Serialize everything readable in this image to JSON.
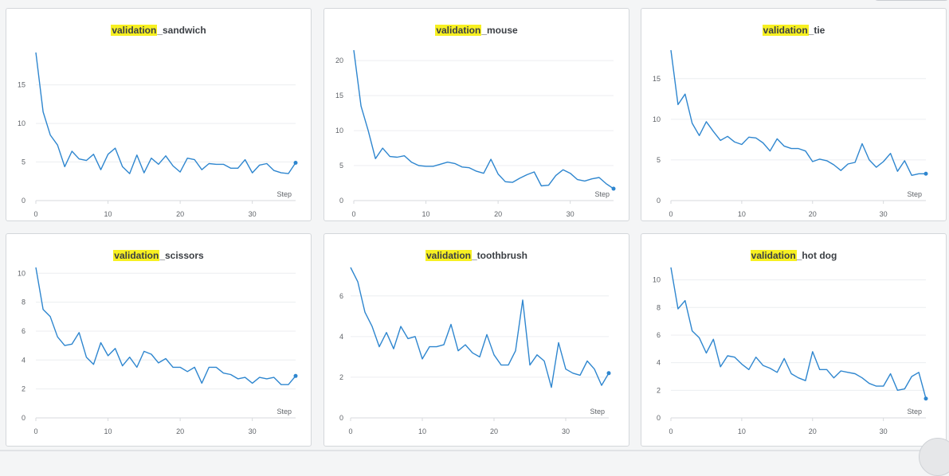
{
  "chart_data": [
    {
      "type": "line",
      "title_highlight": "validation",
      "title_rest": "_sandwich",
      "xlabel": "Step",
      "xlim": [
        0,
        36
      ],
      "ylim": [
        0,
        19.5
      ],
      "x_ticks": [
        0,
        10,
        20,
        30
      ],
      "y_ticks": [
        0,
        5,
        10,
        15
      ],
      "values": [
        19.2,
        11.5,
        8.5,
        7.2,
        4.4,
        6.4,
        5.4,
        5.2,
        6.0,
        4.0,
        6.0,
        6.8,
        4.4,
        3.5,
        5.9,
        3.6,
        5.5,
        4.7,
        5.8,
        4.5,
        3.7,
        5.5,
        5.3,
        4.0,
        4.8,
        4.7,
        4.7,
        4.2,
        4.2,
        5.3,
        3.6,
        4.6,
        4.8,
        3.9,
        3.6,
        3.5,
        4.9
      ]
    },
    {
      "type": "line",
      "title_highlight": "validation",
      "title_rest": "_mouse",
      "xlabel": "Step",
      "xlim": [
        0,
        36
      ],
      "ylim": [
        0,
        21.5
      ],
      "x_ticks": [
        0,
        10,
        20,
        30
      ],
      "y_ticks": [
        0,
        5,
        10,
        15,
        20
      ],
      "values": [
        21.5,
        13.5,
        10.0,
        6.0,
        7.5,
        6.3,
        6.2,
        6.4,
        5.5,
        5.0,
        4.9,
        4.9,
        5.2,
        5.5,
        5.3,
        4.8,
        4.7,
        4.2,
        3.9,
        5.9,
        3.8,
        2.7,
        2.6,
        3.2,
        3.7,
        4.1,
        2.1,
        2.2,
        3.6,
        4.4,
        3.9,
        3.0,
        2.8,
        3.1,
        3.3,
        2.4,
        1.7
      ]
    },
    {
      "type": "line",
      "title_highlight": "validation",
      "title_rest": "_tie",
      "xlabel": "Step",
      "xlim": [
        0,
        36
      ],
      "ylim": [
        0,
        18.5
      ],
      "x_ticks": [
        0,
        10,
        20,
        30
      ],
      "y_ticks": [
        0,
        5,
        10,
        15
      ],
      "values": [
        18.5,
        11.8,
        13.1,
        9.5,
        8.0,
        9.7,
        8.5,
        7.4,
        7.9,
        7.2,
        6.9,
        7.8,
        7.7,
        7.1,
        6.1,
        7.6,
        6.7,
        6.4,
        6.4,
        6.1,
        4.8,
        5.1,
        4.9,
        4.4,
        3.7,
        4.5,
        4.7,
        7.0,
        5.0,
        4.1,
        4.8,
        5.8,
        3.6,
        4.9,
        3.1,
        3.3,
        3.3
      ]
    },
    {
      "type": "line",
      "title_highlight": "validation",
      "title_rest": "_scissors",
      "xlabel": "Step",
      "xlim": [
        0,
        36
      ],
      "ylim": [
        0,
        10.4
      ],
      "x_ticks": [
        0,
        10,
        20,
        30
      ],
      "y_ticks": [
        0,
        2,
        4,
        6,
        8,
        10
      ],
      "values": [
        10.4,
        7.5,
        7.0,
        5.6,
        5.0,
        5.1,
        5.9,
        4.2,
        3.7,
        5.2,
        4.3,
        4.8,
        3.6,
        4.2,
        3.5,
        4.6,
        4.4,
        3.8,
        4.1,
        3.5,
        3.5,
        3.2,
        3.5,
        2.4,
        3.5,
        3.5,
        3.1,
        3.0,
        2.7,
        2.8,
        2.4,
        2.8,
        2.7,
        2.8,
        2.3,
        2.3,
        2.9
      ]
    },
    {
      "type": "line",
      "title_highlight": "validation",
      "title_rest": "_toothbrush",
      "xlabel": "Step",
      "xlim": [
        0,
        36
      ],
      "ylim": [
        0,
        7.4
      ],
      "x_ticks": [
        0,
        10,
        20,
        30
      ],
      "y_ticks": [
        0,
        2,
        4,
        6
      ],
      "values": [
        7.4,
        6.7,
        5.2,
        4.5,
        3.5,
        4.2,
        3.4,
        4.5,
        3.9,
        4.0,
        2.9,
        3.5,
        3.5,
        3.6,
        4.6,
        3.3,
        3.6,
        3.2,
        3.0,
        4.1,
        3.1,
        2.6,
        2.6,
        3.3,
        5.8,
        2.6,
        3.1,
        2.8,
        1.5,
        3.7,
        2.4,
        2.2,
        2.1,
        2.8,
        2.4,
        1.6,
        2.2
      ]
    },
    {
      "type": "line",
      "title_highlight": "validation",
      "title_rest": "_hot dog",
      "xlabel": "Step",
      "xlim": [
        0,
        36
      ],
      "ylim": [
        0,
        10.9
      ],
      "x_ticks": [
        0,
        10,
        20,
        30
      ],
      "y_ticks": [
        0,
        2,
        4,
        6,
        8,
        10
      ],
      "values": [
        10.9,
        7.9,
        8.5,
        6.3,
        5.8,
        4.7,
        5.7,
        3.7,
        4.5,
        4.4,
        3.9,
        3.5,
        4.4,
        3.8,
        3.6,
        3.3,
        4.3,
        3.2,
        2.9,
        2.7,
        4.8,
        3.5,
        3.5,
        2.9,
        3.4,
        3.3,
        3.2,
        2.9,
        2.5,
        2.3,
        2.3,
        3.2,
        2.0,
        2.1,
        3.0,
        3.3,
        1.4
      ]
    }
  ],
  "colors": {
    "line": "#2e86cf",
    "grid": "#eceef0",
    "axis": "#d7dadd",
    "highlight": "#f7f021"
  }
}
